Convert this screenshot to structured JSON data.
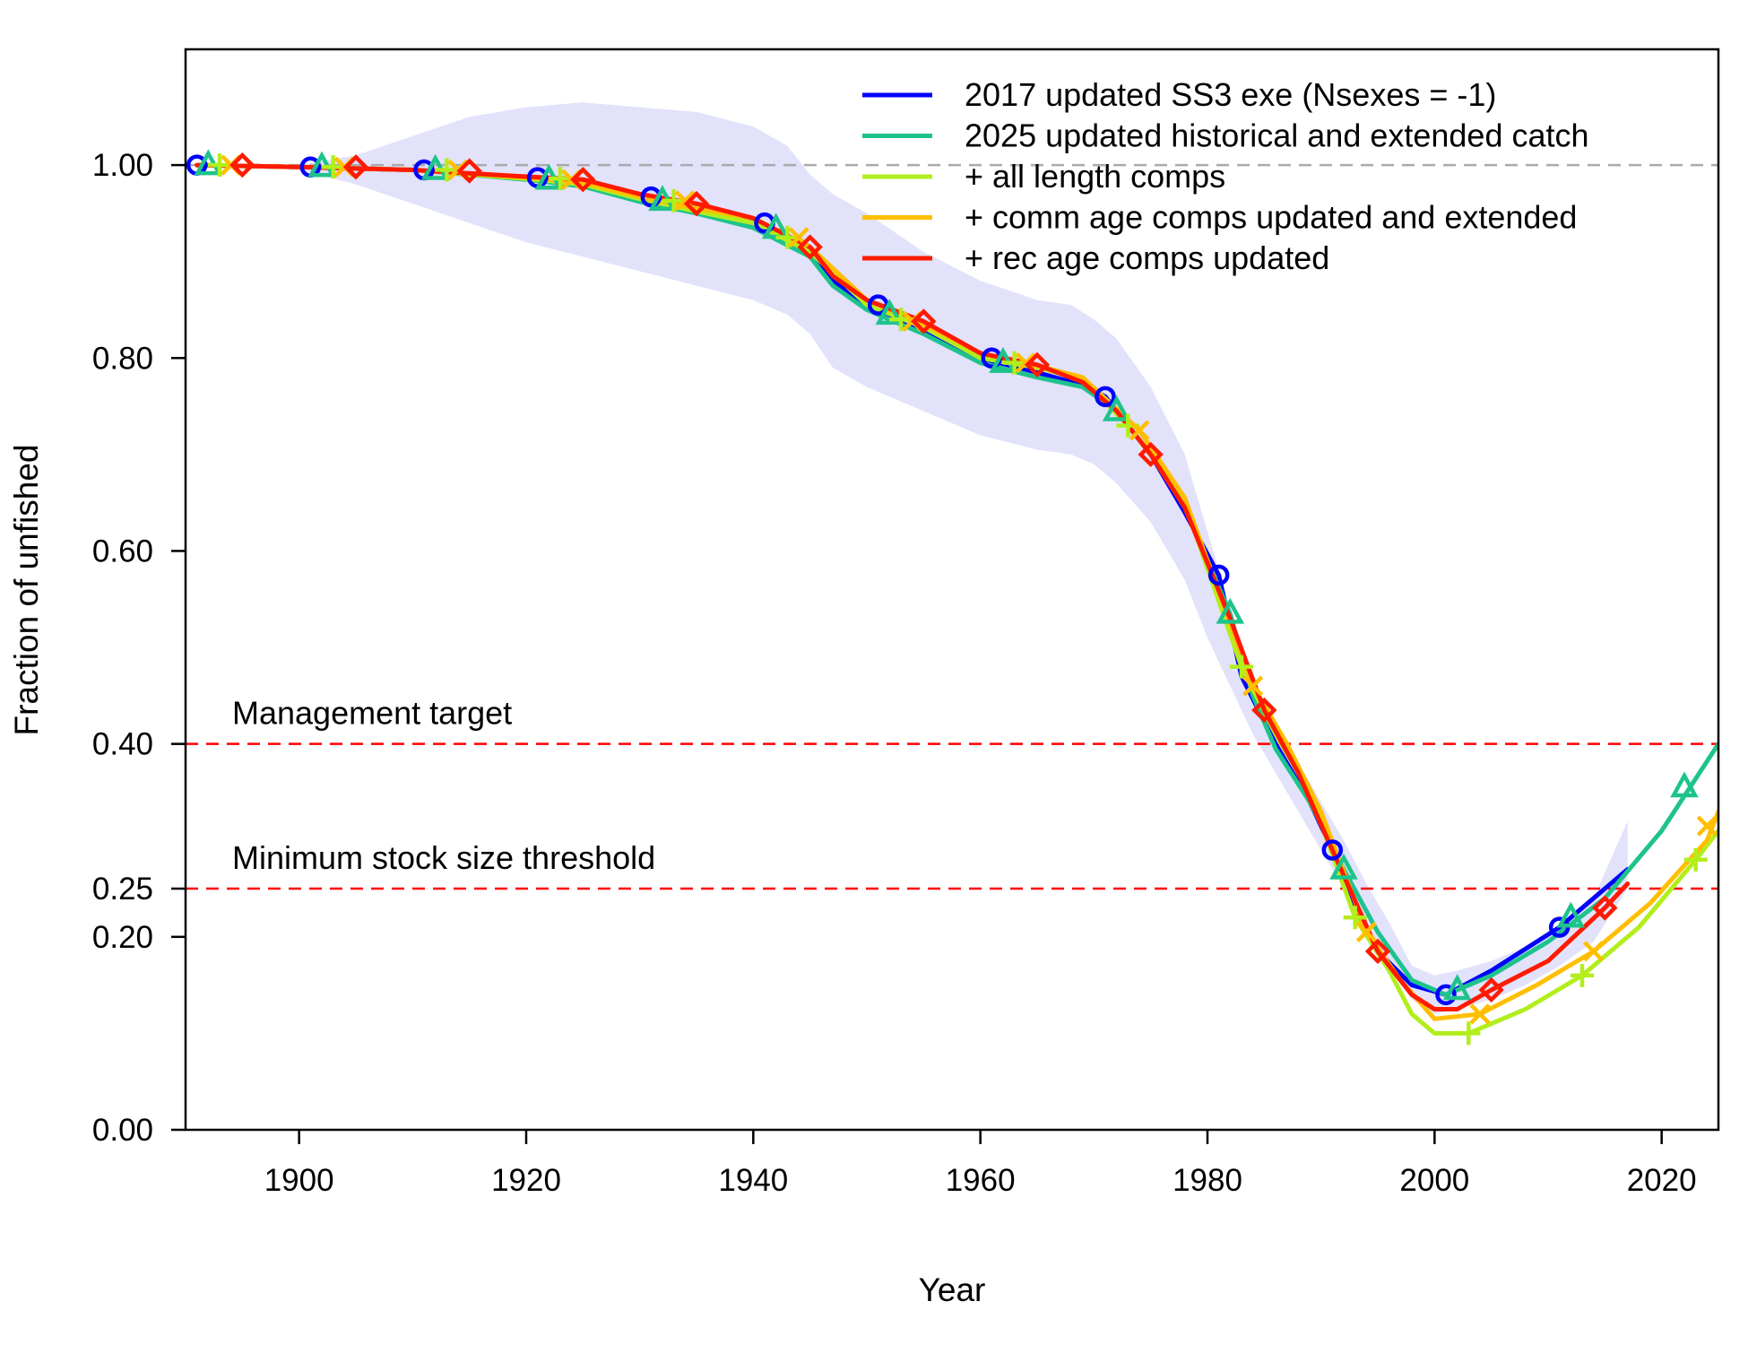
{
  "chart_data": {
    "type": "line",
    "title": "",
    "xlabel": "Year",
    "ylabel": "Fraction of unfished",
    "xlim": [
      1890,
      2025
    ],
    "ylim": [
      0,
      1.12
    ],
    "x_ticks": [
      1900,
      1920,
      1940,
      1960,
      1980,
      2000,
      2020
    ],
    "x_tick_labels": [
      "1900",
      "1920",
      "1940",
      "1960",
      "1980",
      "2000",
      "2020"
    ],
    "y_ticks": [
      0,
      0.2,
      0.25,
      0.4,
      0.6,
      0.8,
      1.0
    ],
    "y_tick_labels": [
      "0.00",
      "0.20",
      "0.25",
      "0.40",
      "0.60",
      "0.80",
      "1.00"
    ],
    "grid": false,
    "legend_position": "top-right",
    "unfished_reference": {
      "value": 1.0,
      "color": "#aaaaaa"
    },
    "reference_lines": [
      {
        "label": "Management target",
        "value": 0.4,
        "color": "#ff0000"
      },
      {
        "label": "Minimum stock size threshold",
        "value": 0.25,
        "color": "#ff0000"
      }
    ],
    "uncertainty_band": {
      "color": "#e2e2fb",
      "x": [
        1890,
        1900,
        1905,
        1910,
        1915,
        1920,
        1925,
        1930,
        1935,
        1940,
        1943,
        1945,
        1947,
        1950,
        1955,
        1960,
        1965,
        1968,
        1970,
        1972,
        1975,
        1978,
        1980,
        1982,
        1984,
        1986,
        1988,
        1990,
        1992,
        1994,
        1996,
        1998,
        2000,
        2002,
        2005,
        2008,
        2011,
        2014,
        2017
      ],
      "upper": [
        1.0,
        1.0,
        1.01,
        1.03,
        1.05,
        1.06,
        1.065,
        1.06,
        1.055,
        1.04,
        1.02,
        0.99,
        0.97,
        0.95,
        0.91,
        0.88,
        0.86,
        0.855,
        0.84,
        0.82,
        0.77,
        0.7,
        0.62,
        0.54,
        0.47,
        0.42,
        0.38,
        0.34,
        0.3,
        0.255,
        0.215,
        0.17,
        0.16,
        0.165,
        0.175,
        0.19,
        0.21,
        0.24,
        0.32
      ],
      "lower": [
        1.0,
        0.995,
        0.98,
        0.96,
        0.94,
        0.92,
        0.905,
        0.89,
        0.875,
        0.86,
        0.845,
        0.825,
        0.79,
        0.77,
        0.745,
        0.72,
        0.705,
        0.7,
        0.69,
        0.67,
        0.63,
        0.57,
        0.51,
        0.46,
        0.41,
        0.37,
        0.33,
        0.29,
        0.25,
        0.21,
        0.17,
        0.135,
        0.12,
        0.125,
        0.135,
        0.15,
        0.17,
        0.195,
        0.25
      ]
    },
    "series": [
      {
        "name": "2017 updated SS3 exe (Nsexes = -1)",
        "color": "#0000ff",
        "marker": "circle",
        "x": [
          1891,
          1900,
          1910,
          1920,
          1925,
          1930,
          1935,
          1940,
          1945,
          1947,
          1950,
          1955,
          1960,
          1965,
          1969,
          1971,
          1975,
          1978,
          1981,
          1983,
          1986,
          1989,
          1991,
          1993,
          1995,
          1998,
          2001,
          2005,
          2011,
          2017
        ],
        "y": [
          1.0,
          0.998,
          0.995,
          0.987,
          0.982,
          0.967,
          0.953,
          0.94,
          0.91,
          0.88,
          0.855,
          0.83,
          0.8,
          0.785,
          0.772,
          0.76,
          0.7,
          0.64,
          0.575,
          0.47,
          0.4,
          0.34,
          0.29,
          0.225,
          0.185,
          0.15,
          0.14,
          0.165,
          0.21,
          0.27
        ],
        "marker_x": [
          1891,
          1901,
          1911,
          1921,
          1931,
          1941,
          1951,
          1961,
          1971,
          1981,
          1991,
          2001,
          2011
        ],
        "marker_y": [
          1.0,
          0.998,
          0.995,
          0.987,
          0.967,
          0.94,
          0.855,
          0.8,
          0.76,
          0.575,
          0.29,
          0.14,
          0.21
        ]
      },
      {
        "name": "2025 updated historical and extended catch",
        "color": "#1ec38c",
        "marker": "triangle",
        "x": [
          1891,
          1900,
          1910,
          1920,
          1925,
          1930,
          1935,
          1940,
          1945,
          1947,
          1950,
          1955,
          1960,
          1965,
          1969,
          1972,
          1975,
          1978,
          1982,
          1984,
          1986,
          1989,
          1992,
          1995,
          1998,
          2001,
          2005,
          2010,
          2015,
          2020,
          2025
        ],
        "y": [
          1.0,
          0.998,
          0.995,
          0.985,
          0.978,
          0.962,
          0.95,
          0.935,
          0.905,
          0.875,
          0.85,
          0.825,
          0.795,
          0.78,
          0.77,
          0.745,
          0.7,
          0.645,
          0.535,
          0.45,
          0.395,
          0.34,
          0.27,
          0.205,
          0.155,
          0.14,
          0.16,
          0.195,
          0.24,
          0.31,
          0.4
        ],
        "marker_x": [
          1892,
          1902,
          1912,
          1922,
          1932,
          1942,
          1952,
          1962,
          1972,
          1982,
          1992,
          2002,
          2012,
          2022
        ],
        "marker_y": [
          1.0,
          0.998,
          0.995,
          0.985,
          0.963,
          0.934,
          0.845,
          0.795,
          0.745,
          0.535,
          0.27,
          0.145,
          0.22,
          0.355
        ]
      },
      {
        "name": "+ all length comps",
        "color": "#b2ee1c",
        "marker": "plus",
        "x": [
          1891,
          1900,
          1910,
          1920,
          1925,
          1930,
          1935,
          1940,
          1945,
          1950,
          1955,
          1960,
          1965,
          1969,
          1973,
          1975,
          1978,
          1983,
          1986,
          1989,
          1993,
          1996,
          1998,
          2000,
          2003,
          2008,
          2013,
          2018,
          2023,
          2025
        ],
        "y": [
          1.0,
          0.998,
          0.995,
          0.986,
          0.98,
          0.965,
          0.952,
          0.94,
          0.91,
          0.855,
          0.832,
          0.8,
          0.79,
          0.778,
          0.73,
          0.7,
          0.65,
          0.48,
          0.41,
          0.35,
          0.22,
          0.165,
          0.12,
          0.1,
          0.1,
          0.125,
          0.16,
          0.21,
          0.28,
          0.31
        ],
        "marker_x": [
          1893,
          1903,
          1913,
          1923,
          1933,
          1943,
          1953,
          1963,
          1973,
          1983,
          1993,
          2003,
          2013,
          2023
        ],
        "marker_y": [
          1.0,
          0.998,
          0.995,
          0.986,
          0.963,
          0.925,
          0.84,
          0.795,
          0.73,
          0.48,
          0.22,
          0.1,
          0.16,
          0.28
        ]
      },
      {
        "name": "+ comm age comps updated and extended",
        "color": "#ffbf00",
        "marker": "cross",
        "x": [
          1891,
          1900,
          1910,
          1920,
          1925,
          1930,
          1935,
          1940,
          1945,
          1950,
          1955,
          1960,
          1965,
          1969,
          1974,
          1978,
          1984,
          1987,
          1990,
          1994,
          1997,
          2000,
          2004,
          2009,
          2014,
          2019,
          2024,
          2025
        ],
        "y": [
          1.0,
          0.998,
          0.995,
          0.987,
          0.982,
          0.967,
          0.955,
          0.945,
          0.915,
          0.86,
          0.835,
          0.805,
          0.792,
          0.78,
          0.725,
          0.655,
          0.46,
          0.4,
          0.33,
          0.205,
          0.155,
          0.115,
          0.12,
          0.15,
          0.185,
          0.235,
          0.3,
          0.33
        ],
        "marker_x": [
          1894,
          1904,
          1914,
          1924,
          1934,
          1944,
          1954,
          1964,
          1974,
          1984,
          1994,
          2004,
          2014,
          2024
        ],
        "marker_y": [
          1.0,
          0.998,
          0.995,
          0.985,
          0.963,
          0.925,
          0.838,
          0.795,
          0.725,
          0.46,
          0.205,
          0.12,
          0.185,
          0.315
        ]
      },
      {
        "name": "+ rec age comps updated",
        "color": "#ff1a00",
        "marker": "diamond",
        "x": [
          1891,
          1900,
          1910,
          1920,
          1925,
          1930,
          1935,
          1940,
          1945,
          1947,
          1950,
          1955,
          1960,
          1965,
          1969,
          1972,
          1975,
          1978,
          1982,
          1985,
          1988,
          1991,
          1995,
          1998,
          2000,
          2002,
          2005,
          2010,
          2015,
          2017
        ],
        "y": [
          1.0,
          0.998,
          0.995,
          0.988,
          0.985,
          0.97,
          0.96,
          0.945,
          0.915,
          0.885,
          0.86,
          0.838,
          0.805,
          0.793,
          0.775,
          0.745,
          0.7,
          0.645,
          0.53,
          0.435,
          0.37,
          0.29,
          0.185,
          0.14,
          0.125,
          0.125,
          0.145,
          0.175,
          0.23,
          0.255
        ],
        "marker_x": [
          1895,
          1905,
          1915,
          1925,
          1935,
          1945,
          1955,
          1965,
          1975,
          1985,
          1995,
          2005,
          2015
        ],
        "marker_y": [
          1.0,
          0.998,
          0.994,
          0.985,
          0.96,
          0.915,
          0.838,
          0.793,
          0.7,
          0.435,
          0.185,
          0.145,
          0.23
        ]
      }
    ]
  }
}
